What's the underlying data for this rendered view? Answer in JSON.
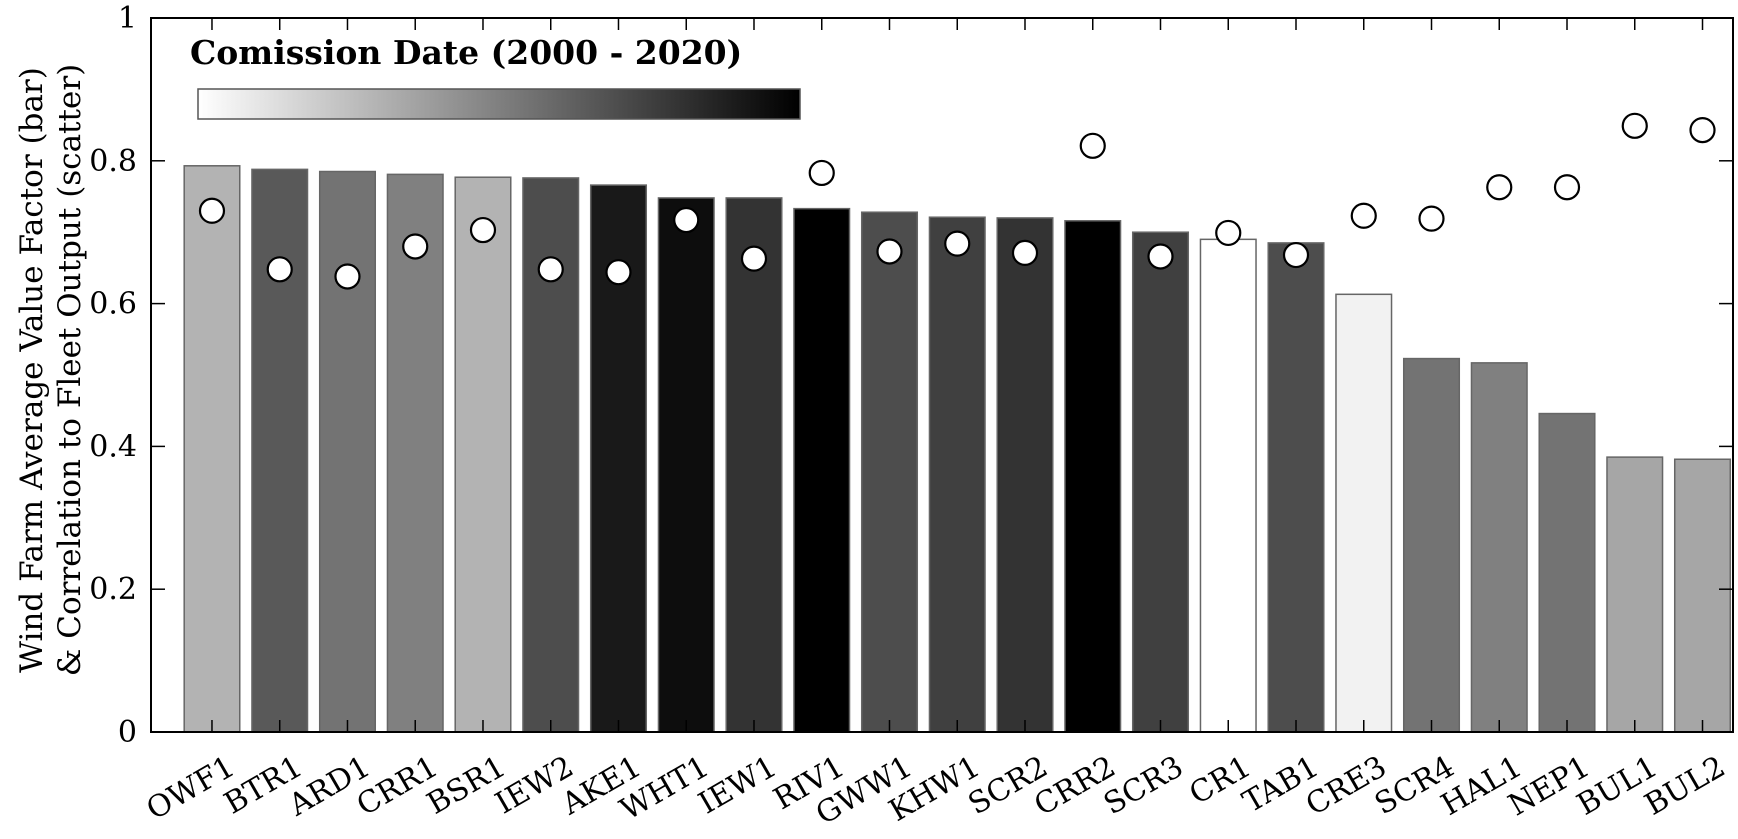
{
  "chart_data": {
    "type": "bar",
    "ylabel_line1": "Wind Farm Average Value Factor (bar)",
    "ylabel_line2": "& Correlation to Fleet Output (scatter)",
    "ylim": [
      0,
      1
    ],
    "yticks": [
      0,
      0.2,
      0.4,
      0.6,
      0.8,
      1
    ],
    "ytick_labels": [
      "0",
      "0.2",
      "0.4",
      "0.6",
      "0.8",
      "1"
    ],
    "grid": false,
    "categories": [
      "OWF1",
      "BTR1",
      "ARD1",
      "CRR1",
      "BSR1",
      "IEW2",
      "AKE1",
      "WHT1",
      "IEW1",
      "RIV1",
      "GWW1",
      "KHW1",
      "SCR2",
      "CRR2",
      "SCR3",
      "CR1",
      "TAB1",
      "CRE3",
      "SCR4",
      "HAL1",
      "NEP1",
      "BUL1",
      "BUL2"
    ],
    "series": [
      {
        "type": "bar",
        "values": [
          0.793,
          0.788,
          0.785,
          0.781,
          0.777,
          0.776,
          0.766,
          0.748,
          0.748,
          0.733,
          0.728,
          0.721,
          0.72,
          0.716,
          0.7,
          0.69,
          0.685,
          0.613,
          0.523,
          0.517,
          0.446,
          0.385,
          0.382
        ],
        "commission_year": [
          2006,
          2013,
          2011,
          2010,
          2006,
          2014,
          2018,
          2019,
          2016,
          2020,
          2014,
          2015,
          2016,
          2020,
          2015,
          2000,
          2014,
          2001,
          2011,
          2010,
          2011,
          2007,
          2007
        ]
      },
      {
        "type": "scatter",
        "values": [
          0.73,
          0.648,
          0.638,
          0.68,
          0.703,
          0.648,
          0.644,
          0.717,
          0.663,
          0.783,
          0.673,
          0.684,
          0.671,
          0.821,
          0.666,
          0.699,
          0.668,
          0.723,
          0.719,
          0.763,
          0.763,
          0.849,
          0.843
        ]
      }
    ],
    "colorbar": {
      "title": "Comission Date (2000 - 2020)",
      "range": [
        2000,
        2020
      ],
      "color_start": "#ffffff",
      "color_end": "#000000",
      "placement": "top-left"
    },
    "colors": {
      "bar_edge": "#666666",
      "marker_fill": "#ffffff",
      "marker_edge": "#000000"
    }
  }
}
